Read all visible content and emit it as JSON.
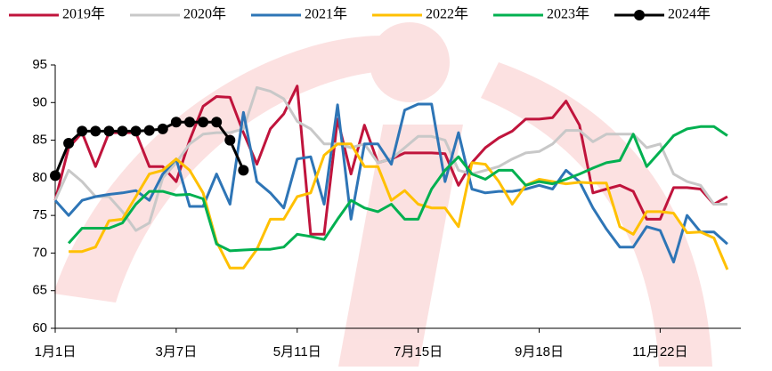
{
  "chart_data": {
    "type": "line",
    "categories": [
      "1月1日",
      null,
      null,
      null,
      null,
      null,
      null,
      null,
      null,
      "3月7日",
      null,
      null,
      null,
      null,
      null,
      null,
      null,
      null,
      "5月11日",
      null,
      null,
      null,
      null,
      null,
      null,
      null,
      null,
      "7月15日",
      null,
      null,
      null,
      null,
      null,
      null,
      null,
      null,
      "9月18日",
      null,
      null,
      null,
      null,
      null,
      null,
      null,
      null,
      "11月22日",
      null,
      null,
      null,
      null,
      null,
      null
    ],
    "ylim": [
      60,
      95
    ],
    "yticks": [
      60,
      65,
      70,
      75,
      80,
      85,
      90,
      95
    ],
    "grid": false,
    "legend": "top",
    "series": [
      {
        "name": "2019年",
        "color": "#c0143c",
        "values": [
          77,
          84,
          86,
          81.5,
          86,
          86,
          86,
          81.5,
          81.5,
          79.5,
          85,
          89.5,
          90.8,
          90.7,
          86,
          81.8,
          86.5,
          88.5,
          92.2,
          72.5,
          72.5,
          87.8,
          80.5,
          87,
          82,
          82.5,
          83.3,
          83.3,
          83.3,
          83.2,
          79,
          82,
          84,
          85.3,
          86.2,
          87.8,
          87.8,
          88,
          90.2,
          87,
          78,
          78.5,
          79,
          78.2,
          74.5,
          74.5,
          78.7,
          78.7,
          78.5,
          76.5,
          77.5,
          null
        ]
      },
      {
        "name": "2020年",
        "color": "#c8c8c8",
        "values": [
          77,
          81,
          79.5,
          77.5,
          77.5,
          75.5,
          73,
          74,
          80,
          82,
          84.5,
          85.8,
          86,
          86,
          86.5,
          92,
          91.5,
          90.5,
          87.5,
          86.5,
          84.5,
          84.5,
          84,
          84.5,
          82,
          82.5,
          84,
          85.5,
          85.5,
          85,
          81,
          80.5,
          81,
          81.5,
          82.5,
          83.3,
          83.5,
          84.5,
          86.3,
          86.3,
          84.8,
          85.8,
          85.8,
          85.8,
          84,
          84.5,
          80.5,
          79.5,
          79,
          76.5,
          76.5,
          null
        ]
      },
      {
        "name": "2021年",
        "color": "#2e75b6",
        "values": [
          77,
          75,
          77,
          77.5,
          77.8,
          78,
          78.3,
          77,
          80.5,
          82.5,
          76.2,
          76.2,
          80.5,
          76.5,
          88.7,
          79.5,
          78,
          76,
          82.5,
          82.8,
          76.5,
          89.7,
          74.5,
          84.5,
          84.5,
          81.8,
          89,
          89.8,
          89.8,
          79.5,
          86,
          78.5,
          78,
          78.2,
          78.2,
          78.5,
          79,
          78.5,
          81,
          79.5,
          76,
          73.2,
          70.8,
          70.8,
          73.5,
          73,
          68.8,
          75,
          72.8,
          72.8,
          71.2,
          null
        ]
      },
      {
        "name": "2022年",
        "color": "#ffc000",
        "values": [
          null,
          70.2,
          70.2,
          70.8,
          74.3,
          74.5,
          77.5,
          80.5,
          81,
          82.5,
          81,
          78,
          71.5,
          68,
          68,
          70.5,
          74.5,
          74.5,
          77.5,
          78,
          83,
          84.5,
          84.5,
          81.5,
          81.5,
          77,
          78.3,
          76.5,
          76,
          76,
          73.5,
          82,
          81.8,
          79.5,
          76.5,
          79,
          79.8,
          79.5,
          79.2,
          79.4,
          79.3,
          79.3,
          73.5,
          72.5,
          75.5,
          75.5,
          75.3,
          72.7,
          72.8,
          72,
          67.8,
          null
        ]
      },
      {
        "name": "2023年",
        "color": "#00b050",
        "values": [
          null,
          71.3,
          73.3,
          73.3,
          73.3,
          74,
          76.5,
          78.2,
          78.2,
          77.7,
          77.8,
          77.2,
          71.2,
          70.3,
          70.4,
          70.5,
          70.5,
          70.8,
          72.5,
          72.2,
          71.8,
          74.5,
          77,
          76,
          75.5,
          76.5,
          74.5,
          74.5,
          78.5,
          81,
          82.8,
          80.5,
          79.8,
          81,
          81,
          79,
          79.5,
          79.2,
          79.8,
          80.5,
          81.3,
          82,
          82.3,
          85.8,
          81.5,
          83.5,
          85.6,
          86.5,
          86.8,
          86.8,
          85.6,
          null
        ]
      },
      {
        "name": "2024年",
        "color": "#000000",
        "marker": "circle",
        "values": [
          80.3,
          84.6,
          86.2,
          86.2,
          86.2,
          86.2,
          86.2,
          86.3,
          86.5,
          87.4,
          87.4,
          87.4,
          87.4,
          85,
          81,
          null,
          null,
          null,
          null,
          null,
          null,
          null,
          null,
          null,
          null,
          null,
          null,
          null,
          null,
          null,
          null,
          null,
          null,
          null,
          null,
          null,
          null,
          null,
          null,
          null,
          null,
          null,
          null,
          null,
          null,
          null,
          null,
          null,
          null,
          null,
          null,
          null
        ]
      }
    ]
  }
}
